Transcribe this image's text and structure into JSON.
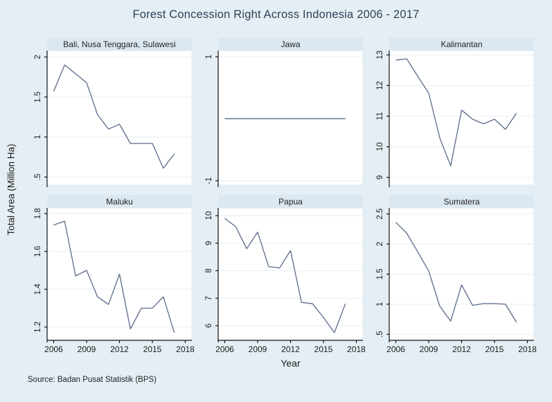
{
  "title": "Forest Concession Right Across Indonesia 2006 - 2017",
  "ylabel": "Total Area (Million Ha)",
  "xlabel": "Year",
  "source_note": "Source: Badan Pusat Statistik (BPS)",
  "colors": {
    "background": "#e5eef4",
    "panel_strip": "#dce8f1",
    "plot_background": "#ffffff",
    "plot_border": "#dfeaf2",
    "gridline": "#e9f1f7",
    "line": "#5a6a89",
    "axis": "#111111",
    "title_text": "#2d4257",
    "tick_text": "#1a1a1a"
  },
  "chart_data": {
    "type": "line",
    "title": "Forest Concession Right Across Indonesia 2006 - 2017",
    "xlabel": "Year",
    "ylabel": "Total Area (Million Ha)",
    "grid": "horizontal",
    "legend_position": "none",
    "x": [
      2006,
      2007,
      2008,
      2009,
      2010,
      2011,
      2012,
      2013,
      2014,
      2015,
      2016,
      2017
    ],
    "xticks": [
      2006,
      2009,
      2012,
      2015,
      2018
    ],
    "xlim": [
      2005.4,
      2018.6
    ],
    "panels": [
      {
        "name": "Bali, Nusa Tenggara, Sulawesi",
        "values": [
          1.57,
          1.9,
          1.79,
          1.68,
          1.28,
          1.1,
          1.16,
          0.92,
          0.92,
          0.92,
          0.61,
          0.79
        ],
        "ytick_values": [
          0.5,
          1,
          1.5,
          2
        ],
        "ytick_labels": [
          ".5",
          "1",
          "1.5",
          "2"
        ],
        "ylim": [
          0.4,
          2.08
        ]
      },
      {
        "name": "Jawa",
        "values": [
          0,
          0,
          0,
          0,
          0,
          0,
          0,
          0,
          0,
          0,
          0,
          0
        ],
        "ytick_values": [
          -1,
          1
        ],
        "ytick_labels": [
          "-1",
          "1"
        ],
        "ylim": [
          -1.07,
          1.1
        ]
      },
      {
        "name": "Kalimantan",
        "values": [
          12.83,
          12.87,
          12.3,
          11.75,
          10.3,
          9.38,
          11.2,
          10.9,
          10.75,
          10.9,
          10.57,
          11.1
        ],
        "ytick_values": [
          9,
          10,
          11,
          12,
          13
        ],
        "ytick_labels": [
          "9",
          "10",
          "11",
          "12",
          "13"
        ],
        "ylim": [
          8.75,
          13.14
        ]
      },
      {
        "name": "Maluku",
        "values": [
          1.74,
          1.76,
          1.47,
          1.5,
          1.36,
          1.32,
          1.48,
          1.19,
          1.3,
          1.3,
          1.36,
          1.17
        ],
        "ytick_values": [
          1.2,
          1.4,
          1.6,
          1.8
        ],
        "ytick_labels": [
          "1.2",
          "1.4",
          "1.6",
          "1.8"
        ],
        "ylim": [
          1.13,
          1.83
        ]
      },
      {
        "name": "Papua",
        "values": [
          9.9,
          9.6,
          8.8,
          9.4,
          8.15,
          8.1,
          8.73,
          6.85,
          6.8,
          6.3,
          5.75,
          6.8
        ],
        "ytick_values": [
          6,
          7,
          8,
          9,
          10
        ],
        "ytick_labels": [
          "6",
          "7",
          "8",
          "9",
          "10"
        ],
        "ylim": [
          5.47,
          10.28
        ]
      },
      {
        "name": "Sumatera",
        "values": [
          2.36,
          2.18,
          1.87,
          1.55,
          0.97,
          0.72,
          1.32,
          0.98,
          1.01,
          1.01,
          1.0,
          0.7
        ],
        "ytick_values": [
          0.5,
          1,
          1.5,
          2,
          2.5
        ],
        "ytick_labels": [
          ".5",
          "1",
          "1.5",
          "2",
          "2.5"
        ],
        "ylim": [
          0.4,
          2.6
        ]
      }
    ]
  }
}
